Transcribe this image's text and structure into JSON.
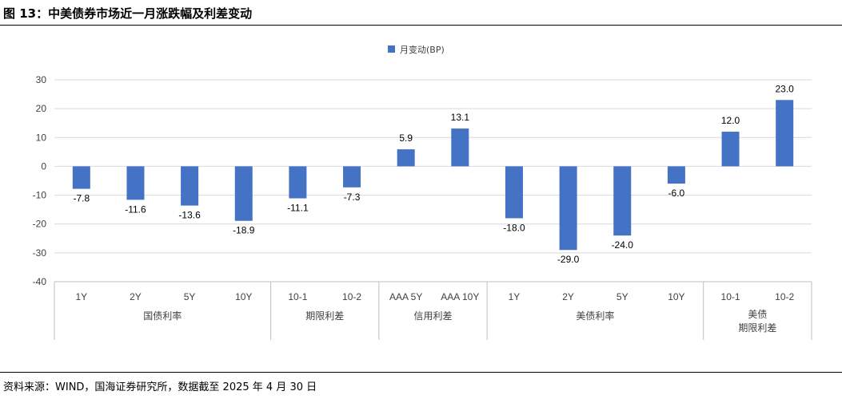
{
  "header": {
    "title": "图 13：中美债券市场近一月涨跌幅及利差变动"
  },
  "footer": {
    "source": "资料来源：WIND，国海证券研究所，数据截至 2025 年 4 月 30 日"
  },
  "chart_data": {
    "type": "bar",
    "legend": {
      "label": "月变动(BP)",
      "position": "top-center"
    },
    "ylim": [
      -40,
      30
    ],
    "yticks": [
      30,
      20,
      10,
      0,
      -10,
      -20,
      -30,
      -40
    ],
    "grid": true,
    "color": "#4472C4",
    "categories": [
      "1Y",
      "2Y",
      "5Y",
      "10Y",
      "10-1",
      "10-2",
      "AAA 5Y",
      "AAA 10Y",
      "1Y",
      "2Y",
      "5Y",
      "10Y",
      "10-1",
      "10-2"
    ],
    "values": [
      -7.8,
      -11.6,
      -13.6,
      -18.9,
      -11.1,
      -7.3,
      5.9,
      13.1,
      -18.0,
      -29.0,
      -24.0,
      -6.0,
      12.0,
      23.0
    ],
    "value_labels": [
      "-7.8",
      "-11.6",
      "-13.6",
      "-18.9",
      "-11.1",
      "-7.3",
      "5.9",
      "13.1",
      "-18.0",
      "-29.0",
      "-24.0",
      "-6.0",
      "12.0",
      "23.0"
    ],
    "groups": [
      {
        "label": [
          "国债利率"
        ],
        "count": 4
      },
      {
        "label": [
          "期限利差"
        ],
        "count": 2
      },
      {
        "label": [
          "信用利差"
        ],
        "count": 2
      },
      {
        "label": [
          "美债利率"
        ],
        "count": 4
      },
      {
        "label": [
          "美债",
          "期限利差"
        ],
        "count": 2
      }
    ],
    "series": [
      {
        "name": "月变动(BP)"
      }
    ]
  }
}
